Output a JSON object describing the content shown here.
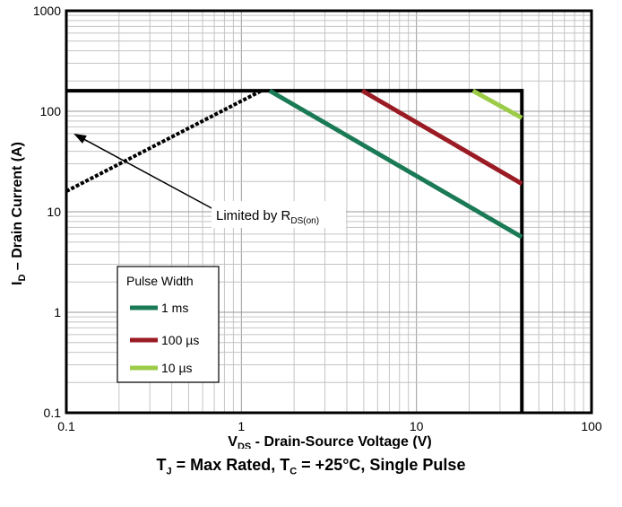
{
  "chart_data": {
    "type": "line",
    "log_x": true,
    "log_y": true,
    "xlim": [
      0.1,
      100
    ],
    "ylim": [
      0.1,
      1000
    ],
    "x_ticks": [
      0.1,
      1,
      10,
      100
    ],
    "x_tick_labels": [
      "0.1",
      "1",
      "10",
      "100"
    ],
    "y_ticks": [
      0.1,
      1,
      10,
      100,
      1000
    ],
    "y_tick_labels": [
      "0.1",
      "1",
      "10",
      "100",
      "1000"
    ],
    "grid": true,
    "xlabel": {
      "main": "V",
      "sub": "DS",
      "rest": " - Drain-Source Voltage (V)"
    },
    "ylabel": {
      "main": "I",
      "sub": "D",
      "rest": " – Drain Current (A)"
    },
    "boundary": {
      "current_limit": 160,
      "voltage_limit": 40
    },
    "rdson_limit": {
      "x": [
        0.1,
        1.3
      ],
      "y": [
        16,
        160
      ]
    },
    "series": [
      {
        "name": "1 ms",
        "color": "#1a7a55",
        "x": [
          1.45,
          40
        ],
        "y": [
          160,
          5.6
        ]
      },
      {
        "name": "100 µs",
        "color": "#9b1b24",
        "x": [
          4.9,
          40
        ],
        "y": [
          160,
          19
        ]
      },
      {
        "name": "10 µs",
        "color": "#9ccc47",
        "x": [
          21,
          40
        ],
        "y": [
          160,
          86
        ]
      }
    ],
    "legend": {
      "title": "Pulse Width",
      "position": "bottom-left"
    },
    "annotation": {
      "text": "Limited by R",
      "sub": "DS(on)",
      "arrow_to": [
        0.11,
        60
      ]
    }
  },
  "caption": {
    "tj_main": "T",
    "tj_sub": "J",
    "tj_rest": " = Max Rated, ",
    "tc_main": "T",
    "tc_sub": "C",
    "tc_rest": " = +25°C, Single Pulse"
  }
}
